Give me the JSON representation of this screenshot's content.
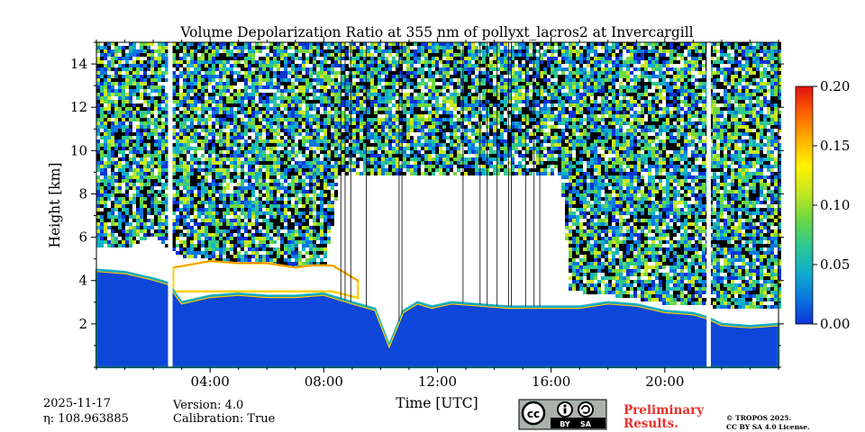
{
  "chart_data": {
    "type": "heatmap",
    "title": "Volume Depolarization Ratio at 355 nm of pollyxt_lacros2 at Invercargill",
    "xlabel": "Time [UTC]",
    "ylabel": "Height [km]",
    "x_range_hours": [
      0,
      24
    ],
    "ylim": [
      0,
      15
    ],
    "x_ticks": [
      {
        "value": 4,
        "label": "04:00"
      },
      {
        "value": 8,
        "label": "08:00"
      },
      {
        "value": 12,
        "label": "12:00"
      },
      {
        "value": 16,
        "label": "16:00"
      },
      {
        "value": 20,
        "label": "20:00"
      }
    ],
    "y_ticks": [
      {
        "value": 2,
        "label": "2"
      },
      {
        "value": 4,
        "label": "4"
      },
      {
        "value": 6,
        "label": "6"
      },
      {
        "value": 8,
        "label": "8"
      },
      {
        "value": 10,
        "label": "10"
      },
      {
        "value": 12,
        "label": "12"
      },
      {
        "value": 14,
        "label": "14"
      }
    ],
    "colorbar": {
      "range": [
        0,
        0.2
      ],
      "ticks": [
        {
          "value": 0.0,
          "label": "0.00"
        },
        {
          "value": 0.05,
          "label": "0.05"
        },
        {
          "value": 0.1,
          "label": "0.10"
        },
        {
          "value": 0.15,
          "label": "0.15"
        },
        {
          "value": 0.2,
          "label": "0.20"
        }
      ],
      "colors": [
        "#0d34d8",
        "#0a78e0",
        "#10b0c8",
        "#30c890",
        "#70d840",
        "#c8e820",
        "#fff200",
        "#ffb000",
        "#ff6000",
        "#e01010"
      ]
    },
    "gaps_hours": [
      [
        2.52,
        2.68
      ],
      [
        21.47,
        21.62
      ]
    ],
    "blank_columns_hours": [
      8.6,
      8.75,
      8.95,
      9.5,
      10.65,
      10.75,
      12.9,
      13.5,
      13.75,
      14.1,
      14.5,
      14.6,
      15.1,
      15.4,
      15.6
    ],
    "low_layer_top_km": [
      [
        0,
        4.5
      ],
      [
        1.0,
        4.4
      ],
      [
        2.0,
        4.1
      ],
      [
        2.5,
        3.9
      ],
      [
        3.0,
        3.0
      ],
      [
        4.0,
        3.3
      ],
      [
        5.0,
        3.4
      ],
      [
        6.0,
        3.3
      ],
      [
        7.0,
        3.3
      ],
      [
        8.0,
        3.4
      ],
      [
        9.0,
        3.0
      ],
      [
        9.8,
        2.7
      ],
      [
        10.3,
        1.0
      ],
      [
        10.8,
        2.6
      ],
      [
        11.3,
        3.0
      ],
      [
        11.8,
        2.8
      ],
      [
        12.5,
        3.0
      ],
      [
        13.5,
        2.9
      ],
      [
        14.5,
        2.8
      ],
      [
        16.0,
        2.8
      ],
      [
        17.0,
        2.8
      ],
      [
        18.0,
        3.0
      ],
      [
        19.0,
        2.9
      ],
      [
        20.0,
        2.6
      ],
      [
        21.0,
        2.5
      ],
      [
        21.5,
        2.3
      ],
      [
        22.0,
        2.0
      ],
      [
        23.0,
        1.9
      ],
      [
        24.0,
        2.0
      ]
    ],
    "noise_bottom_km": [
      [
        0,
        5.6
      ],
      [
        1.0,
        5.6
      ],
      [
        2.0,
        6.2
      ],
      [
        2.5,
        5.5
      ],
      [
        3.0,
        5.2
      ],
      [
        5.0,
        4.8
      ],
      [
        7.0,
        4.6
      ],
      [
        8.0,
        4.3
      ],
      [
        8.5,
        9.0
      ],
      [
        16.3,
        9.0
      ],
      [
        16.6,
        3.6
      ],
      [
        18.0,
        3.4
      ],
      [
        20.0,
        3.0
      ],
      [
        21.0,
        3.0
      ],
      [
        22.0,
        2.8
      ],
      [
        24.0,
        2.8
      ]
    ],
    "cloud_layer_km": [
      [
        2.7,
        3.5,
        4.6
      ],
      [
        4.0,
        3.5,
        4.9
      ],
      [
        5.0,
        3.5,
        4.8
      ],
      [
        6.0,
        3.5,
        4.8
      ],
      [
        7.0,
        3.5,
        4.6
      ],
      [
        7.6,
        3.5,
        4.7
      ],
      [
        8.3,
        3.5,
        4.7
      ],
      [
        9.2,
        3.2,
        4.0
      ]
    ]
  },
  "footer": {
    "date": "2025-11-17",
    "eta": "η: 108.963885",
    "version": "Version: 4.0",
    "calibration": "Calibration: True",
    "preliminary_line1": "Preliminary",
    "preliminary_line2": "Results.",
    "copyright_line1": "© TROPOS 2025.",
    "copyright_line2": "CC BY SA 4.0 License.",
    "license_badge_by": "BY",
    "license_badge_sa": "SA"
  }
}
